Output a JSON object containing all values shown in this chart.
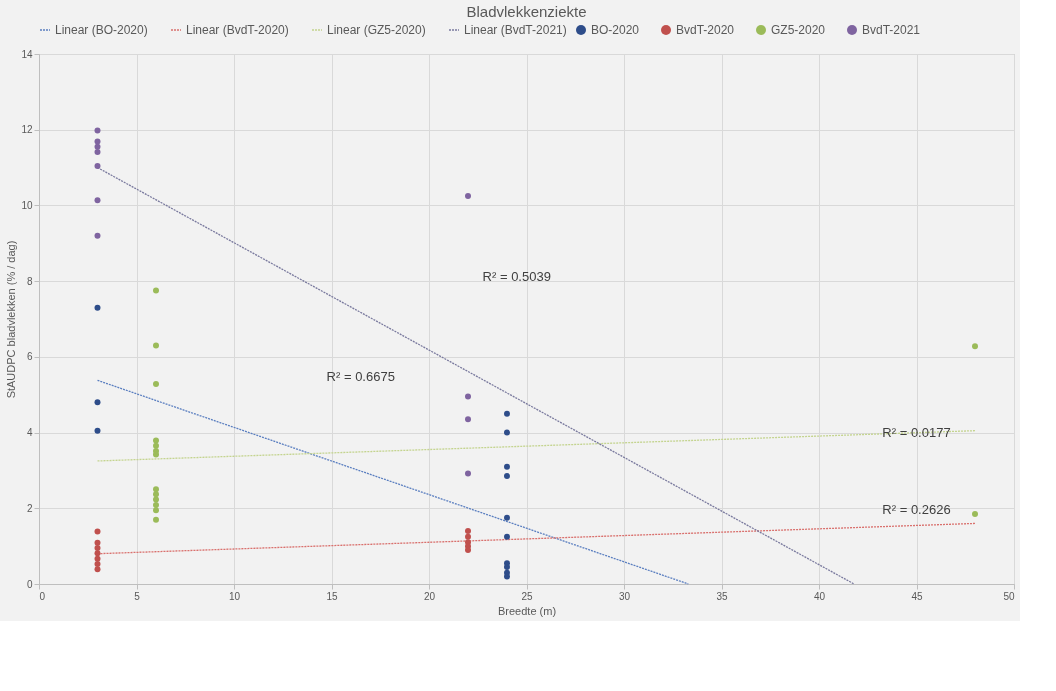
{
  "chart_data": {
    "type": "scatter",
    "title": "Bladvlekkenziekte",
    "xlabel": "Breedte (m)",
    "ylabel": "StAUDPC bladvlekken (% / dag)",
    "xlim": [
      0,
      50
    ],
    "xticks": [
      0,
      5,
      10,
      15,
      20,
      25,
      30,
      35,
      40,
      45,
      50
    ],
    "ylim": [
      0,
      14
    ],
    "yticks": [
      0,
      2,
      4,
      6,
      8,
      10,
      12,
      14
    ],
    "grid": true,
    "legend": "top",
    "marker": "circle",
    "series": [
      {
        "name": "BO-2020",
        "type": "scatter",
        "color": "#2e4d8a",
        "x": [
          3,
          3,
          3,
          24,
          24,
          24,
          24,
          24,
          24,
          24,
          24,
          24,
          24
        ],
        "values": [
          7.3,
          4.8,
          4.05,
          4.5,
          4.0,
          3.1,
          2.85,
          1.75,
          1.25,
          0.55,
          0.45,
          0.3,
          0.2
        ]
      },
      {
        "name": "BvdT-2020",
        "type": "scatter",
        "color": "#c0504d",
        "x": [
          3,
          3,
          3,
          3,
          3,
          3,
          3,
          22,
          22,
          22,
          22,
          22
        ],
        "values": [
          1.39,
          1.09,
          0.95,
          0.81,
          0.67,
          0.53,
          0.39,
          1.4,
          1.25,
          1.1,
          1.0,
          0.9
        ]
      },
      {
        "name": "GZ5-2020",
        "type": "scatter",
        "color": "#9bbb59",
        "x": [
          6,
          6,
          6,
          6,
          6,
          6,
          6,
          6,
          6,
          6,
          6,
          6,
          6,
          48,
          48
        ],
        "values": [
          7.75,
          6.3,
          5.28,
          3.79,
          3.65,
          3.51,
          3.42,
          2.5,
          2.37,
          2.23,
          2.09,
          1.95,
          1.7,
          6.28,
          1.85
        ]
      },
      {
        "name": "BvdT-2021",
        "type": "scatter",
        "color": "#7f64a0",
        "x": [
          3,
          3,
          3,
          3,
          3,
          3,
          3,
          22,
          22,
          22,
          22
        ],
        "values": [
          11.98,
          11.69,
          11.55,
          11.41,
          11.04,
          10.14,
          9.2,
          10.25,
          4.95,
          4.35,
          2.92
        ]
      },
      {
        "name": "Linear (BO-2020)",
        "type": "line",
        "line_style": "dotted",
        "marker": "none",
        "color": "#5b7fc0",
        "x": [
          3,
          33.3
        ],
        "values": [
          5.38,
          0
        ]
      },
      {
        "name": "Linear (BvdT-2020)",
        "type": "line",
        "line_style": "dotted",
        "marker": "none",
        "color": "#d9706d",
        "x": [
          3,
          48
        ],
        "values": [
          0.8,
          1.6
        ]
      },
      {
        "name": "Linear (GZ5-2020)",
        "type": "line",
        "line_style": "dotted",
        "marker": "none",
        "color": "#c4d48f",
        "x": [
          3,
          48
        ],
        "values": [
          3.25,
          4.05
        ]
      },
      {
        "name": "Linear (BvdT-2021)",
        "type": "line",
        "line_style": "dotted",
        "marker": "none",
        "color": "#7a7a9e",
        "x": [
          3,
          41.8
        ],
        "values": [
          11.0,
          0
        ]
      }
    ],
    "annotations": [
      "R² = 0.5039",
      "R² = 0.6675",
      "R² = 0.0177",
      "R² = 0.2626"
    ]
  }
}
